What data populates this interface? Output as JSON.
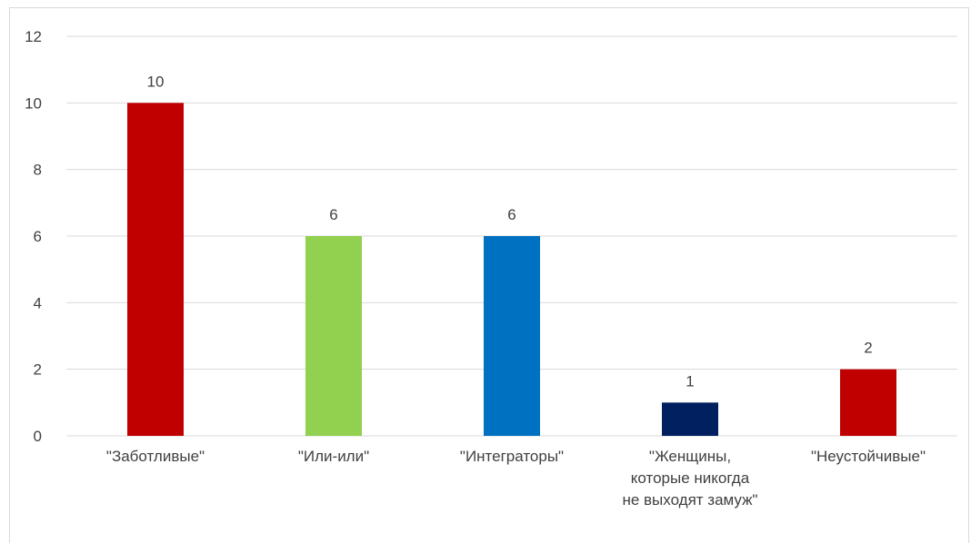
{
  "chart_data": {
    "type": "bar",
    "categories": [
      [
        "\"Заботливые\""
      ],
      [
        "\"Или-или\""
      ],
      [
        "\"Интеграторы\""
      ],
      [
        "\"Женщины,",
        "которые никогда",
        "не выходят замуж\""
      ],
      [
        "\"Неустойчивые\""
      ]
    ],
    "values": [
      10,
      6,
      6,
      1,
      2
    ],
    "colors": [
      "#c00000",
      "#92d050",
      "#0070c0",
      "#002060",
      "#c00000"
    ],
    "ylim": [
      0,
      12
    ],
    "yticks": [
      0,
      2,
      4,
      6,
      8,
      10,
      12
    ],
    "grid": true,
    "data_labels": true,
    "title": "",
    "xlabel": "",
    "ylabel": ""
  }
}
